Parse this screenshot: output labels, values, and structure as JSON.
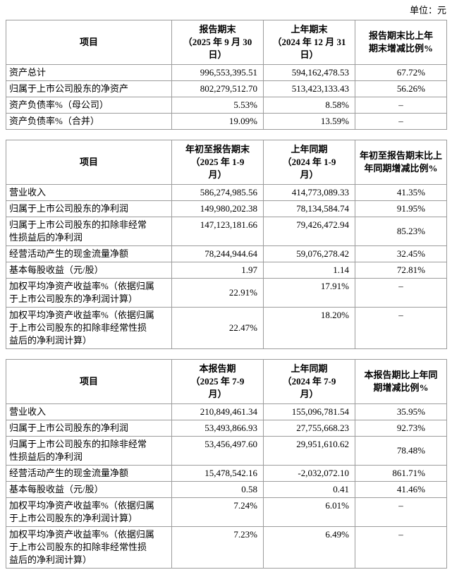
{
  "unit_label": "单位：元",
  "t1": {
    "headers": [
      "项目",
      "报告期末\n（2025 年 9 月 30\n日）",
      "上年期末\n（2024 年 12 月 31\n日）",
      "报告期末比上年\n期末增减比例%"
    ],
    "rows": [
      {
        "label": "资产总计",
        "current": "996,553,395.51",
        "prior": "594,162,478.53",
        "change": "67.72%"
      },
      {
        "label": "归属于上市公司股东的净资产",
        "current": "802,279,512.70",
        "prior": "513,423,133.43",
        "change": "56.26%"
      },
      {
        "label": "资产负债率%（母公司）",
        "current": "5.53%",
        "prior": "8.58%",
        "change": "–"
      },
      {
        "label": "资产负债率%（合并）",
        "current": "19.09%",
        "prior": "13.59%",
        "change": "–"
      }
    ]
  },
  "t2": {
    "headers": [
      "项目",
      "年初至报告期末\n（2025 年 1-9\n月）",
      "上年同期\n（2024 年 1-9\n月）",
      "年初至报告期末比上\n年同期增减比例%"
    ],
    "rows": [
      {
        "label": "营业收入",
        "current": "586,274,985.56",
        "prior": "414,773,089.33",
        "change": "41.35%"
      },
      {
        "label": "归属于上市公司股东的净利润",
        "current": "149,980,202.38",
        "prior": "78,134,584.74",
        "change": "91.95%"
      },
      {
        "label": "归属于上市公司股东的扣除非经常\n性损益后的净利润",
        "current": "147,123,181.66",
        "prior": "79,426,472.94",
        "change": "85.23%"
      },
      {
        "label": "经营活动产生的现金流量净额",
        "current": "78,244,944.64",
        "prior": "59,076,278.42",
        "change": "32.45%"
      },
      {
        "label": "基本每股收益（元/股）",
        "current": "1.97",
        "prior": "1.14",
        "change": "72.81%"
      },
      {
        "label": "加权平均净资产收益率%（依据归属\n于上市公司股东的净利润计算）",
        "current": "22.91%",
        "prior": "17.91%",
        "change": "–"
      },
      {
        "label": "加权平均净资产收益率%（依据归属\n于上市公司股东的扣除非经常性损\n益后的净利润计算）",
        "current": "22.47%",
        "prior": "18.20%",
        "change": "–"
      }
    ]
  },
  "t3": {
    "headers": [
      "项目",
      "本报告期\n（2025 年 7-9\n月）",
      "上年同期\n（2024 年 7-9\n月）",
      "本报告期比上年同\n期增减比例%"
    ],
    "rows": [
      {
        "label": "营业收入",
        "current": "210,849,461.34",
        "prior": "155,096,781.54",
        "change": "35.95%"
      },
      {
        "label": "归属于上市公司股东的净利润",
        "current": "53,493,866.93",
        "prior": "27,755,668.23",
        "change": "92.73%"
      },
      {
        "label": "归属于上市公司股东的扣除非经常\n性损益后的净利润",
        "current": "53,456,497.60",
        "prior": "29,951,610.62",
        "change": "78.48%"
      },
      {
        "label": "经营活动产生的现金流量净额",
        "current": "15,478,542.16",
        "prior": "-2,032,072.10",
        "change": "861.71%"
      },
      {
        "label": "基本每股收益（元/股）",
        "current": "0.58",
        "prior": "0.41",
        "change": "41.46%"
      },
      {
        "label": "加权平均净资产收益率%（依据归属\n于上市公司股东的净利润计算）",
        "current": "7.24%",
        "prior": "6.01%",
        "change": "–"
      },
      {
        "label": "加权平均净资产收益率%（依据归属\n于上市公司股东的扣除非经常性损\n益后的净利润计算）",
        "current": "7.23%",
        "prior": "6.49%",
        "change": "–"
      }
    ]
  }
}
